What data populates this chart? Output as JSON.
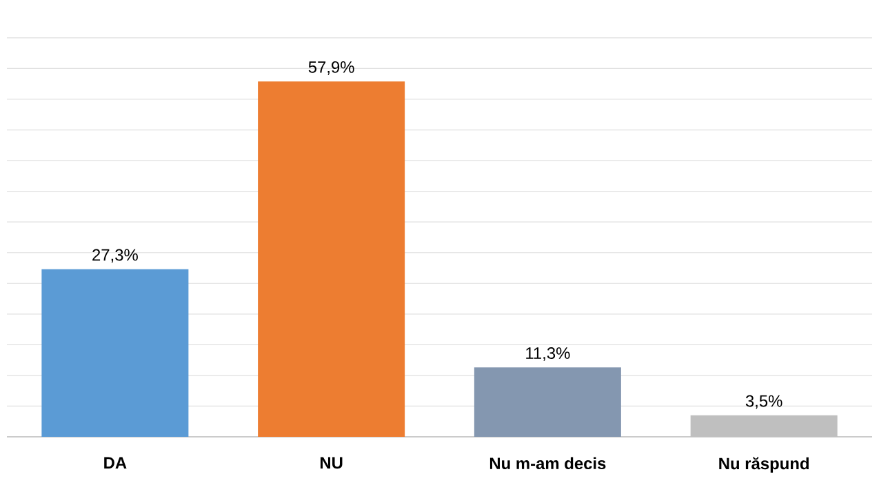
{
  "chart_data": {
    "type": "bar",
    "categories": [
      "DA",
      "NU",
      "Nu m-am decis",
      "Nu răspund"
    ],
    "values": [
      27.3,
      57.9,
      11.3,
      3.5
    ],
    "colors": [
      "#5b9bd5",
      "#ed7d31",
      "#8497b0",
      "#bfbfbf"
    ],
    "value_labels": [
      "27,3%",
      "57,9%",
      "11,3%",
      "3,5%"
    ],
    "grid": "y",
    "tick_labels": "x"
  }
}
